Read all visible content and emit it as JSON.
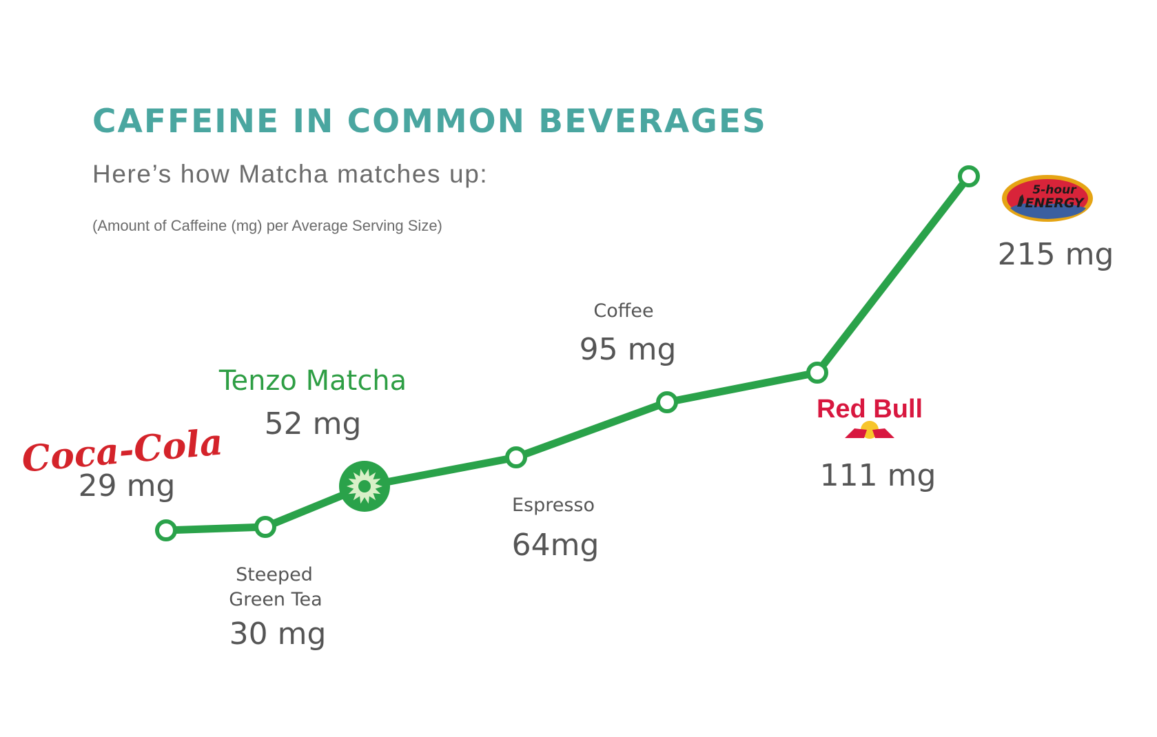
{
  "colors": {
    "title": "#4aa6a0",
    "subtitle": "#6b6b6b",
    "text_dark": "#555555",
    "line": "#2aa24a",
    "matcha_text": "#2e9e44",
    "coke_red": "#d4232a",
    "redbull_red": "#d8173f",
    "redbull_yellow": "#f7c52b",
    "fivehour_red": "#d8243a",
    "fivehour_gold": "#e5a414"
  },
  "header": {
    "title": "CAFFEINE IN COMMON BEVERAGES",
    "subtitle": "Here’s how Matcha matches up:",
    "note": "(Amount of Caffeine (mg) per Average Serving Size)"
  },
  "chart_data": {
    "type": "line",
    "title": "CAFFEINE IN COMMON BEVERAGES",
    "subtitle": "Here’s how Matcha matches up:",
    "ylabel": "(Amount of Caffeine (mg) per Average Serving Size)",
    "categories": [
      "Coca-Cola",
      "Steeped Green Tea",
      "Tenzo Matcha",
      "Espresso",
      "Coffee",
      "Red Bull",
      "5-hour Energy"
    ],
    "values": [
      29,
      30,
      52,
      64,
      95,
      111,
      215
    ],
    "points": [
      {
        "category": "Coca-Cola",
        "value": 29,
        "label_lines": [],
        "value_label": "29 mg",
        "logo": "coca-cola-logo"
      },
      {
        "category": "Steeped Green Tea",
        "value": 30,
        "label_lines": [
          "Steeped",
          "Green Tea"
        ],
        "value_label": "30 mg"
      },
      {
        "category": "Tenzo Matcha",
        "value": 52,
        "label_lines": [
          "Tenzo Matcha"
        ],
        "value_label": "52 mg",
        "icon": "sun-icon"
      },
      {
        "category": "Espresso",
        "value": 64,
        "label_lines": [
          "Espresso"
        ],
        "value_label": "64mg"
      },
      {
        "category": "Coffee",
        "value": 95,
        "label_lines": [
          "Coffee"
        ],
        "value_label": "95 mg"
      },
      {
        "category": "Red Bull",
        "value": 111,
        "label_lines": [],
        "value_label": "111 mg",
        "logo": "red-bull-logo"
      },
      {
        "category": "5-hour Energy",
        "value": 215,
        "label_lines": [],
        "value_label": "215 mg",
        "logo": "five-hour-energy-logo"
      }
    ],
    "grid": false,
    "legend": "none"
  },
  "logos": {
    "coke": "Coca-Cola",
    "redbull": "Red Bull",
    "fivehour_top": "5-hour",
    "fivehour_bottom": "ENERGY"
  }
}
